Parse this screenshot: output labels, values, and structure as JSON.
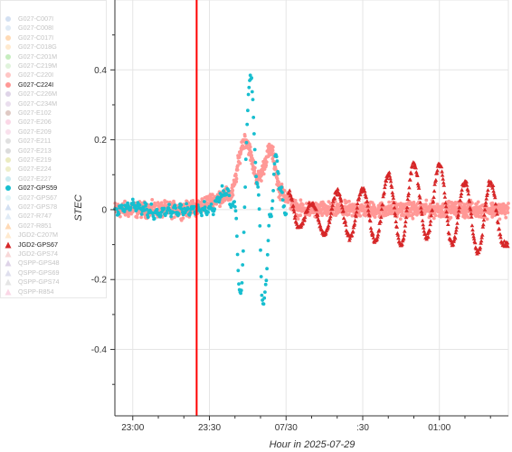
{
  "chart_data": {
    "type": "scatter",
    "title": "",
    "xlabel": "Hour in 2025-07-29",
    "ylabel": "STEC",
    "xlim": [
      "2025-07-28T22:53",
      "2025-07-29T01:27"
    ],
    "ylim": [
      -0.59,
      0.6
    ],
    "x_ticks": [
      "23:00",
      "23:30",
      "07/30",
      ":30",
      "01:00"
    ],
    "x_tick_times": [
      "2025-07-28T23:00",
      "2025-07-28T23:30",
      "2025-07-29T00:00",
      "2025-07-29T00:30",
      "2025-07-29T01:00"
    ],
    "y_ticks": [
      0.4,
      0.2,
      0,
      -0.2,
      -0.4
    ],
    "grid": true,
    "legend_position": "left",
    "vline": {
      "x": "2025-07-28T23:25",
      "color": "#ff0000"
    },
    "legend": [
      {
        "label": "G027-C007I",
        "marker": "circle",
        "color": "#aec7e8",
        "active": false
      },
      {
        "label": "G027-C008I",
        "marker": "circle",
        "color": "#c6dbef",
        "active": false
      },
      {
        "label": "G027-C017I",
        "marker": "circle",
        "color": "#ffbb78",
        "active": false
      },
      {
        "label": "G027-C018G",
        "marker": "circle",
        "color": "#ffd8a8",
        "active": false
      },
      {
        "label": "G027-C201M",
        "marker": "circle",
        "color": "#98df8a",
        "active": false
      },
      {
        "label": "G027-C219M",
        "marker": "circle",
        "color": "#c7e9c0",
        "active": false
      },
      {
        "label": "G027-C220I",
        "marker": "circle",
        "color": "#ff9896",
        "active": false
      },
      {
        "label": "G027-C224I",
        "marker": "circle",
        "color": "#ff9896",
        "active": true
      },
      {
        "label": "G027-C226M",
        "marker": "circle",
        "color": "#c5b0d5",
        "active": false
      },
      {
        "label": "G027-C234M",
        "marker": "circle",
        "color": "#d9c2e0",
        "active": false
      },
      {
        "label": "G027-E102",
        "marker": "circle",
        "color": "#c49c94",
        "active": false
      },
      {
        "label": "G027-E206",
        "marker": "circle",
        "color": "#f7b6d2",
        "active": false
      },
      {
        "label": "G027-E209",
        "marker": "circle",
        "color": "#f4c6dc",
        "active": false
      },
      {
        "label": "G027-E211",
        "marker": "circle",
        "color": "#c7c7c7",
        "active": false
      },
      {
        "label": "G027-E213",
        "marker": "circle",
        "color": "#bdbdbd",
        "active": false
      },
      {
        "label": "G027-E219",
        "marker": "circle",
        "color": "#dbdb8d",
        "active": false
      },
      {
        "label": "G027-E224",
        "marker": "circle",
        "color": "#e0e09c",
        "active": false
      },
      {
        "label": "G027-E227",
        "marker": "circle",
        "color": "#9edae5",
        "active": false
      },
      {
        "label": "G027-GPS59",
        "marker": "circle",
        "color": "#17becf",
        "active": true
      },
      {
        "label": "G027-GPS67",
        "marker": "circle",
        "color": "#c6ecf2",
        "active": false
      },
      {
        "label": "G027-GPS78",
        "marker": "triangle",
        "color": "#aec7e8",
        "active": false
      },
      {
        "label": "G027-R747",
        "marker": "triangle",
        "color": "#c6dbef",
        "active": false
      },
      {
        "label": "G027-R851",
        "marker": "triangle",
        "color": "#ffbb78",
        "active": false
      },
      {
        "label": "JGD2-C207M",
        "marker": "triangle",
        "color": "#ffd8a8",
        "active": false
      },
      {
        "label": "JGD2-GPS67",
        "marker": "triangle",
        "color": "#d62728",
        "active": true
      },
      {
        "label": "JGD2-GPS74",
        "marker": "triangle",
        "color": "#f2b8b8",
        "active": false
      },
      {
        "label": "QSPP-GPS48",
        "marker": "triangle",
        "color": "#c5b0d5",
        "active": false
      },
      {
        "label": "QSPP-GPS69",
        "marker": "triangle",
        "color": "#c7c7e0",
        "active": false
      },
      {
        "label": "QSPP-GPS74",
        "marker": "triangle",
        "color": "#d0d0d0",
        "active": false
      },
      {
        "label": "QSPP-R854",
        "marker": "triangle",
        "color": "#f7b6d2",
        "active": false
      }
    ],
    "series": [
      {
        "name": "G027-C224I",
        "marker": "circle",
        "color": "#ff9896",
        "segments": [
          {
            "start": "22:53",
            "end": "01:27",
            "interval_min": 0.1
          }
        ],
        "key_points": [
          {
            "x": "22:55",
            "y": 0.0
          },
          {
            "x": "23:20",
            "y": 0.0
          },
          {
            "x": "23:38",
            "y": 0.04
          },
          {
            "x": "23:44",
            "y": 0.2
          },
          {
            "x": "23:49",
            "y": 0.09
          },
          {
            "x": "23:54",
            "y": 0.17
          },
          {
            "x": "23:58",
            "y": 0.05
          },
          {
            "x": "00:05",
            "y": 0.0
          },
          {
            "x": "01:27",
            "y": 0.0
          }
        ]
      },
      {
        "name": "G027-GPS59",
        "marker": "circle",
        "color": "#17becf",
        "segments": [
          {
            "start": "22:53",
            "end": "00:00",
            "interval_min": 0.25
          }
        ],
        "key_points": [
          {
            "x": "22:53",
            "y": 0.0
          },
          {
            "x": "23:00",
            "y": 0.01
          },
          {
            "x": "23:10",
            "y": -0.01
          },
          {
            "x": "23:20",
            "y": 0.0
          },
          {
            "x": "23:30",
            "y": 0.0
          },
          {
            "x": "23:36",
            "y": 0.05
          },
          {
            "x": "23:40",
            "y": 0.01
          },
          {
            "x": "23:42",
            "y": -0.25
          },
          {
            "x": "23:46",
            "y": 0.38
          },
          {
            "x": "23:49",
            "y": 0.06
          },
          {
            "x": "23:51",
            "y": -0.28
          },
          {
            "x": "23:54",
            "y": -0.02
          },
          {
            "x": "23:56",
            "y": 0.15
          },
          {
            "x": "23:58",
            "y": 0.05
          },
          {
            "x": "00:00",
            "y": -0.01
          }
        ]
      },
      {
        "name": "JGD2-GPS67",
        "marker": "triangle",
        "color": "#d62728",
        "segments": [
          {
            "start": "00:01",
            "end": "01:27",
            "interval_min": 0.2
          }
        ],
        "key_points": [
          {
            "x": "00:01",
            "y": 0.05
          },
          {
            "x": "00:05",
            "y": -0.05
          },
          {
            "x": "00:10",
            "y": 0.02
          },
          {
            "x": "00:15",
            "y": -0.07
          },
          {
            "x": "00:20",
            "y": 0.05
          },
          {
            "x": "00:25",
            "y": -0.08
          },
          {
            "x": "00:30",
            "y": 0.06
          },
          {
            "x": "00:35",
            "y": -0.09
          },
          {
            "x": "00:40",
            "y": 0.1
          },
          {
            "x": "00:45",
            "y": -0.1
          },
          {
            "x": "00:50",
            "y": 0.13
          },
          {
            "x": "00:55",
            "y": -0.08
          },
          {
            "x": "01:00",
            "y": 0.13
          },
          {
            "x": "01:05",
            "y": -0.1
          },
          {
            "x": "01:10",
            "y": 0.08
          },
          {
            "x": "01:15",
            "y": -0.12
          },
          {
            "x": "01:20",
            "y": 0.08
          },
          {
            "x": "01:25",
            "y": -0.1
          }
        ]
      }
    ]
  }
}
